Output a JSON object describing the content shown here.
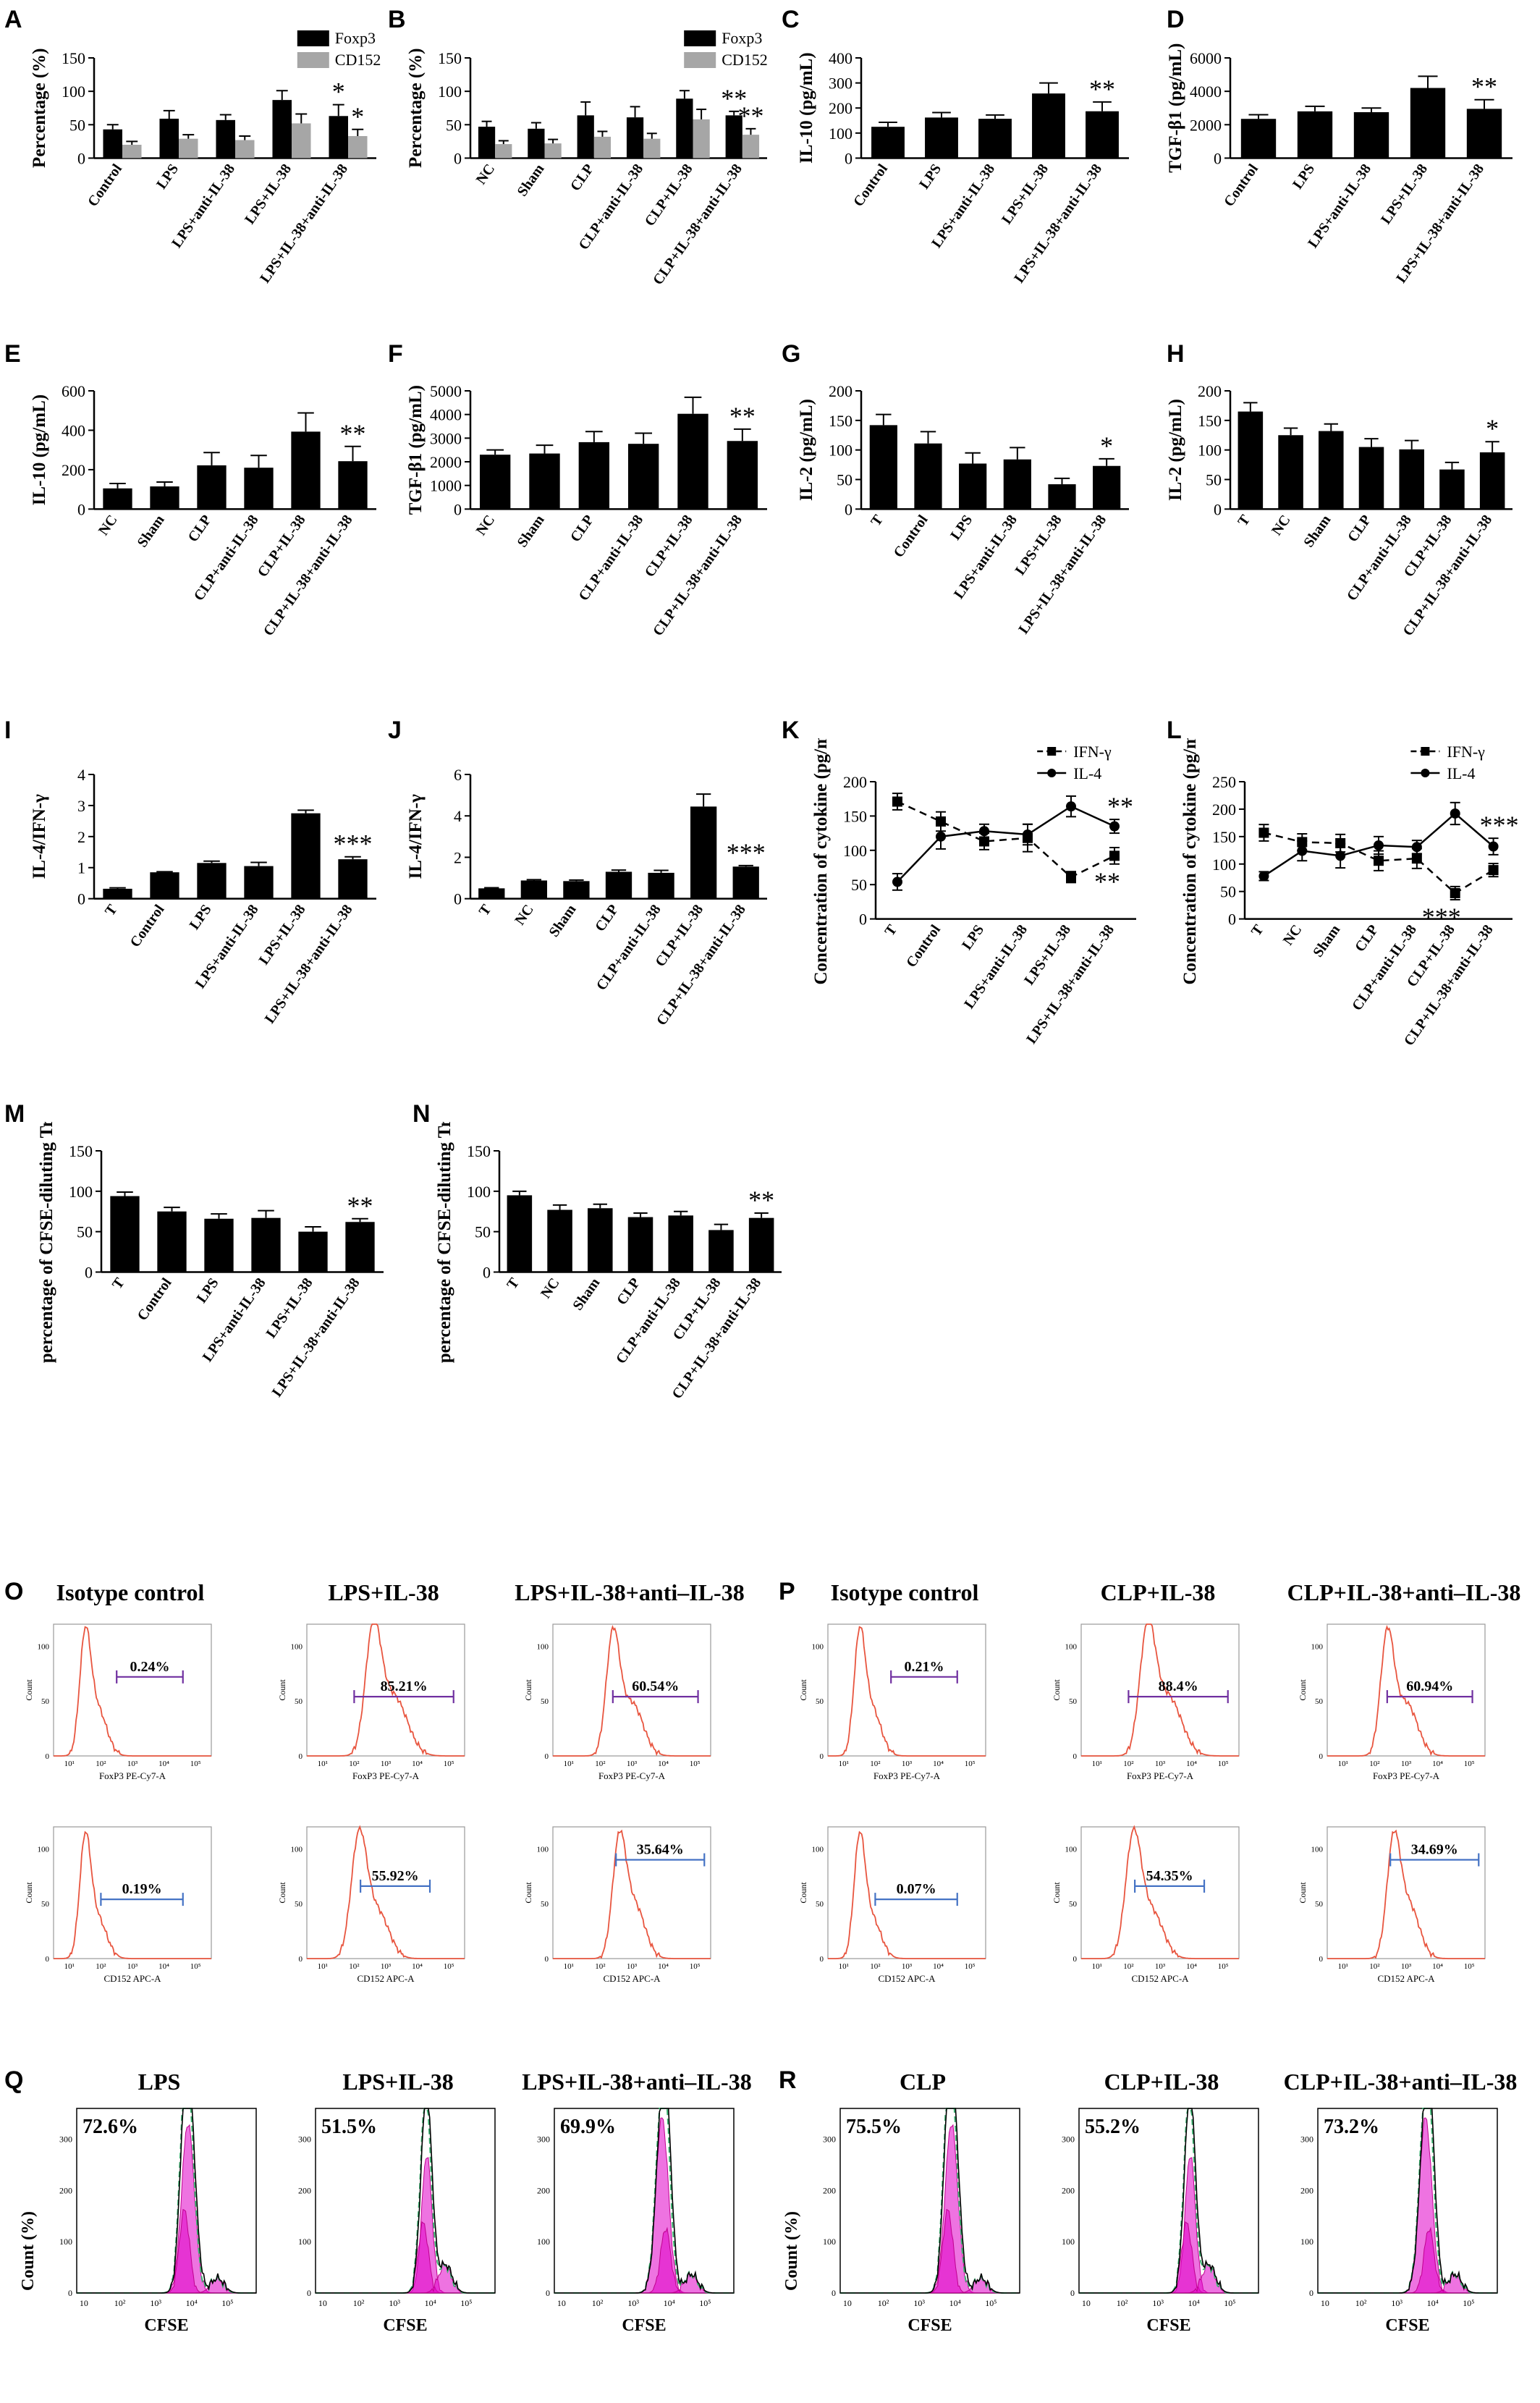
{
  "panels": {
    "A": {
      "label": "A",
      "type": "bar-grouped",
      "ylabel": "Percentage (%)",
      "ylim": [
        0,
        150
      ],
      "yticks": [
        0,
        50,
        100,
        150
      ],
      "categories": [
        "Control",
        "LPS",
        "LPS+anti-IL-38",
        "LPS+IL-38",
        "LPS+IL-38+anti-IL-38"
      ],
      "series": [
        {
          "name": "Foxp3",
          "color": "#000000",
          "values": [
            43,
            59,
            57,
            87,
            63
          ],
          "errors": [
            7,
            12,
            8,
            14,
            17
          ],
          "sig": [
            "",
            "",
            "",
            "",
            "*"
          ]
        },
        {
          "name": "CD152",
          "color": "#a6a6a6",
          "values": [
            20,
            29,
            27,
            52,
            33
          ],
          "errors": [
            5,
            6,
            6,
            14,
            10
          ],
          "sig": [
            "",
            "",
            "",
            "",
            "*"
          ]
        }
      ]
    },
    "B": {
      "label": "B",
      "type": "bar-grouped",
      "ylabel": "Percentage (%)",
      "ylim": [
        0,
        150
      ],
      "yticks": [
        0,
        50,
        100,
        150
      ],
      "categories": [
        "NC",
        "Sham",
        "CLP",
        "CLP+anti-IL-38",
        "CLP+IL-38",
        "CLP+IL-38+anti-IL-38"
      ],
      "series": [
        {
          "name": "Foxp3",
          "color": "#000000",
          "values": [
            47,
            44,
            64,
            61,
            89,
            64
          ],
          "errors": [
            8,
            9,
            20,
            16,
            12,
            6
          ],
          "sig": [
            "",
            "",
            "",
            "",
            "",
            "**"
          ]
        },
        {
          "name": "CD152",
          "color": "#a6a6a6",
          "values": [
            21,
            22,
            32,
            29,
            58,
            35
          ],
          "errors": [
            5,
            6,
            8,
            8,
            15,
            9
          ],
          "sig": [
            "",
            "",
            "",
            "",
            "",
            "**"
          ]
        }
      ]
    },
    "C": {
      "label": "C",
      "type": "bar",
      "ylabel": "IL-10  (pg/mL)",
      "ylim": [
        0,
        400
      ],
      "yticks": [
        0,
        100,
        200,
        300,
        400
      ],
      "categories": [
        "Control",
        "LPS",
        "LPS+anti-IL-38",
        "LPS+IL-38",
        "LPS+IL-38+anti-IL-38"
      ],
      "values": [
        125,
        162,
        157,
        258,
        187
      ],
      "errors": [
        18,
        20,
        15,
        42,
        37
      ],
      "sig": [
        "",
        "",
        "",
        "",
        "**"
      ]
    },
    "D": {
      "label": "D",
      "type": "bar",
      "ylabel": "TGF-β1  (pg/mL)",
      "ylim": [
        0,
        6000
      ],
      "yticks": [
        0,
        2000,
        4000,
        6000
      ],
      "categories": [
        "Control",
        "LPS",
        "LPS+anti-IL-38",
        "LPS+IL-38",
        "LPS+IL-38+anti-IL-38"
      ],
      "values": [
        2350,
        2800,
        2750,
        4200,
        2950
      ],
      "errors": [
        250,
        300,
        250,
        700,
        550
      ],
      "sig": [
        "",
        "",
        "",
        "",
        "**"
      ]
    },
    "E": {
      "label": "E",
      "type": "bar",
      "ylabel": "IL-10  (pg/mL)",
      "ylim": [
        0,
        600
      ],
      "yticks": [
        0,
        200,
        400,
        600
      ],
      "categories": [
        "NC",
        "Sham",
        "CLP",
        "CLP+anti-IL-38",
        "CLP+IL-38",
        "CLP+IL-38+anti-IL-38"
      ],
      "values": [
        105,
        115,
        222,
        210,
        393,
        243
      ],
      "errors": [
        25,
        22,
        65,
        62,
        95,
        75
      ],
      "sig": [
        "",
        "",
        "",
        "",
        "",
        "**"
      ]
    },
    "F": {
      "label": "F",
      "type": "bar",
      "ylabel": "TGF-β1  (pg/mL)",
      "ylim": [
        0,
        5000
      ],
      "yticks": [
        0,
        1000,
        2000,
        3000,
        4000,
        5000
      ],
      "categories": [
        "NC",
        "Sham",
        "CLP",
        "CLP+anti-IL-38",
        "CLP+IL-38",
        "CLP+IL-38+anti-IL-38"
      ],
      "values": [
        2300,
        2350,
        2830,
        2760,
        4030,
        2880
      ],
      "errors": [
        200,
        350,
        450,
        450,
        700,
        500
      ],
      "sig": [
        "",
        "",
        "",
        "",
        "",
        "**"
      ]
    },
    "G": {
      "label": "G",
      "type": "bar",
      "ylabel": "IL-2  (pg/mL)",
      "ylim": [
        0,
        200
      ],
      "yticks": [
        0,
        50,
        100,
        150,
        200
      ],
      "categories": [
        "T",
        "Control",
        "LPS",
        "LPS+anti-IL-38",
        "LPS+IL-38",
        "LPS+IL-38+anti-IL-38"
      ],
      "values": [
        142,
        111,
        77,
        84,
        42,
        73
      ],
      "errors": [
        18,
        20,
        18,
        20,
        10,
        12
      ],
      "sig": [
        "",
        "",
        "",
        "",
        "",
        "*"
      ]
    },
    "H": {
      "label": "H",
      "type": "bar",
      "ylabel": "IL-2  (pg/mL)",
      "ylim": [
        0,
        200
      ],
      "yticks": [
        0,
        50,
        100,
        150,
        200
      ],
      "categories": [
        "T",
        "NC",
        "Sham",
        "CLP",
        "CLP+anti-IL-38",
        "CLP+IL-38",
        "CLP+IL-38+anti-IL-38"
      ],
      "values": [
        165,
        125,
        132,
        105,
        101,
        67,
        96
      ],
      "errors": [
        15,
        12,
        12,
        14,
        15,
        12,
        18
      ],
      "sig": [
        "",
        "",
        "",
        "",
        "",
        "",
        "*"
      ]
    },
    "I": {
      "label": "I",
      "type": "bar",
      "ylabel": "IL-4/IFN-γ",
      "ylim": [
        0,
        4
      ],
      "yticks": [
        0,
        1,
        2,
        3,
        4
      ],
      "categories": [
        "T",
        "Control",
        "LPS",
        "LPS+anti-IL-38",
        "LPS+IL-38",
        "LPS+IL-38+anti-IL-38"
      ],
      "values": [
        0.32,
        0.85,
        1.15,
        1.05,
        2.75,
        1.27
      ],
      "errors": [
        0.03,
        0.02,
        0.06,
        0.12,
        0.1,
        0.08
      ],
      "sig": [
        "",
        "",
        "",
        "",
        "",
        "***"
      ]
    },
    "J": {
      "label": "J",
      "type": "bar",
      "ylabel": "IL-4/IFN-γ",
      "ylim": [
        0,
        6
      ],
      "yticks": [
        0,
        2,
        4,
        6
      ],
      "categories": [
        "T",
        "NC",
        "Sham",
        "CLP",
        "CLP+anti-IL-38",
        "CLP+IL-38",
        "CLP+IL-38+anti-IL-38"
      ],
      "values": [
        0.5,
        0.88,
        0.85,
        1.3,
        1.25,
        4.45,
        1.55
      ],
      "errors": [
        0.03,
        0.04,
        0.05,
        0.08,
        0.12,
        0.6,
        0.05
      ],
      "sig": [
        "",
        "",
        "",
        "",
        "",
        "",
        "***"
      ]
    },
    "K": {
      "label": "K",
      "type": "line",
      "ylabel": "Concentration of cytokine (pg/mL)",
      "ylim": [
        0,
        200
      ],
      "yticks": [
        0,
        50,
        100,
        150,
        200
      ],
      "categories": [
        "T",
        "Control",
        "LPS",
        "LPS+anti-IL-38",
        "LPS+IL-38",
        "LPS+IL-38+anti-IL-38"
      ],
      "series": [
        {
          "name": "IFN-γ",
          "dash": true,
          "marker": "square",
          "values": [
            171,
            142,
            113,
            118,
            61,
            92
          ],
          "errors": [
            12,
            14,
            12,
            20,
            8,
            12
          ],
          "sig": [
            "",
            "",
            "",
            "",
            "",
            "**"
          ]
        },
        {
          "name": "IL-4",
          "dash": false,
          "marker": "circle",
          "values": [
            54,
            120,
            128,
            123,
            164,
            135
          ],
          "errors": [
            12,
            18,
            10,
            15,
            15,
            10
          ],
          "sig": [
            "",
            "",
            "",
            "",
            "",
            "**"
          ]
        }
      ]
    },
    "L": {
      "label": "L",
      "type": "line",
      "ylabel": "Concentration of cytokine (pg/mL)",
      "ylim": [
        0,
        250
      ],
      "yticks": [
        0,
        50,
        100,
        150,
        200,
        250
      ],
      "categories": [
        "T",
        "NC",
        "Sham",
        "CLP",
        "CLP+anti-IL-38",
        "CLP+IL-38",
        "CLP+IL-38+anti-IL-38"
      ],
      "series": [
        {
          "name": "IFN-γ",
          "dash": true,
          "marker": "square",
          "values": [
            157,
            140,
            138,
            106,
            110,
            47,
            89
          ],
          "errors": [
            15,
            15,
            16,
            18,
            18,
            12,
            12
          ],
          "sig": [
            "",
            "",
            "",
            "",
            "",
            "***",
            ""
          ]
        },
        {
          "name": "IL-4",
          "dash": false,
          "marker": "circle",
          "values": [
            78,
            124,
            115,
            134,
            131,
            192,
            132
          ],
          "errors": [
            8,
            18,
            22,
            16,
            12,
            20,
            15
          ],
          "sig": [
            "",
            "",
            "",
            "",
            "",
            "",
            "***"
          ]
        }
      ]
    },
    "M": {
      "label": "M",
      "type": "bar",
      "ylabel": "percentage of CFSE-diluting Tresp (%)",
      "ylim": [
        0,
        150
      ],
      "yticks": [
        0,
        50,
        100,
        150
      ],
      "categories": [
        "T",
        "Control",
        "LPS",
        "LPS+anti-IL-38",
        "LPS+IL-38",
        "LPS+IL-38+anti-IL-38"
      ],
      "values": [
        94,
        75,
        66,
        67,
        50,
        62
      ],
      "errors": [
        5,
        5,
        6,
        9,
        6,
        4
      ],
      "sig": [
        "",
        "",
        "",
        "",
        "",
        "**"
      ]
    },
    "N": {
      "label": "N",
      "type": "bar",
      "ylabel": "percentage of CFSE-diluting Tresp (%)",
      "ylim": [
        0,
        150
      ],
      "yticks": [
        0,
        50,
        100,
        150
      ],
      "categories": [
        "T",
        "NC",
        "Sham",
        "CLP",
        "CLP+anti-IL-38",
        "CLP+IL-38",
        "CLP+IL-38+anti-IL-38"
      ],
      "values": [
        95,
        77,
        79,
        68,
        70,
        52,
        67
      ],
      "errors": [
        5,
        6,
        5,
        5,
        5,
        7,
        6
      ],
      "sig": [
        "",
        "",
        "",
        "",
        "",
        "",
        "**"
      ]
    }
  },
  "flow_O": {
    "label": "O",
    "titles": [
      "Isotype control",
      "LPS+IL-38",
      "LPS+IL-38+anti–IL-38"
    ],
    "foxp3_pct": [
      "0.24%",
      "85.21%",
      "60.54%"
    ],
    "cd152_pct": [
      "0.19%",
      "55.92%",
      "35.64%"
    ]
  },
  "flow_P": {
    "label": "P",
    "titles": [
      "Isotype control",
      "CLP+IL-38",
      "CLP+IL-38+anti–IL-38"
    ],
    "foxp3_pct": [
      "0.21%",
      "88.4%",
      "60.94%"
    ],
    "cd152_pct": [
      "0.07%",
      "54.35%",
      "34.69%"
    ]
  },
  "flow_axis": {
    "count_label": "Count",
    "foxp3_label": "FoxP3 PE-Cy7-A",
    "cd152_label": "CD152 APC-A",
    "yticks": [
      "0",
      "50",
      "100"
    ],
    "xticks": [
      "10¹",
      "10²",
      "10³",
      "10⁴",
      "10⁵"
    ]
  },
  "cfse_Q": {
    "label": "Q",
    "titles": [
      "LPS",
      "LPS+IL-38",
      "LPS+IL-38+anti–IL-38"
    ],
    "pcts": [
      "72.6%",
      "51.5%",
      "69.9%"
    ]
  },
  "cfse_R": {
    "label": "R",
    "titles": [
      "CLP",
      "CLP+IL-38",
      "CLP+IL-38+anti–IL-38"
    ],
    "pcts": [
      "75.5%",
      "55.2%",
      "73.2%"
    ]
  },
  "cfse_axis": {
    "ylabel": "Count (%)",
    "xlabel": "CFSE",
    "xticks": [
      "10",
      "10²",
      "10³",
      "10⁴",
      "10⁵"
    ]
  },
  "colors": {
    "histogram": "#e8553f",
    "foxp3_gate": "#7030a0",
    "cd152_gate": "#4472c4",
    "cfse_fill": "#e000c8",
    "cfse_fit": "#3cb371"
  }
}
